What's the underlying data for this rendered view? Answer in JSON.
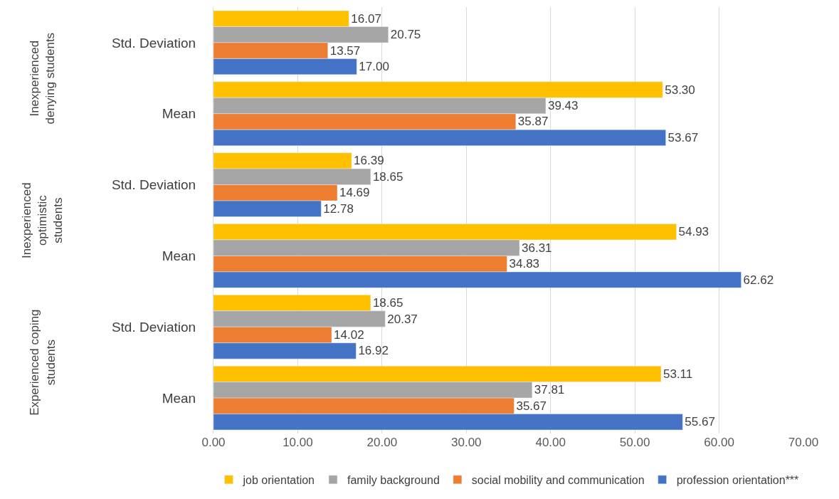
{
  "chart_data": {
    "type": "bar",
    "orientation": "horizontal",
    "categories": [
      "Std. Deviation",
      "Mean",
      "Std. Deviation",
      "Mean",
      "Std. Deviation",
      "Mean"
    ],
    "annotations": [
      "Inexperienced denying students",
      "Inexperienced optimistic students",
      "Experienced coping students"
    ],
    "series": [
      {
        "name": "job orientation",
        "color": "#ffc000",
        "values": [
          16.07,
          53.3,
          16.39,
          54.93,
          18.65,
          53.11
        ],
        "value_labels": [
          "16.07",
          "53.30",
          "16.39",
          "54.93",
          "18.65",
          "53.11"
        ]
      },
      {
        "name": "family background",
        "color": "#a5a5a5",
        "values": [
          20.75,
          39.43,
          18.65,
          36.31,
          20.37,
          37.81
        ],
        "value_labels": [
          "20.75",
          "39.43",
          "18.65",
          "36.31",
          "20.37",
          "37.81"
        ]
      },
      {
        "name": "social mobility and communication",
        "color": "#ed7d31",
        "values": [
          13.57,
          35.87,
          14.69,
          34.83,
          14.02,
          35.67
        ],
        "value_labels": [
          "13.57",
          "35.87",
          "14.69",
          "34.83",
          "14.02",
          "35.67"
        ]
      },
      {
        "name": "profession orientation***",
        "color": "#4472c4",
        "values": [
          17.0,
          53.67,
          12.78,
          62.62,
          16.92,
          55.67
        ],
        "value_labels": [
          "17.00",
          "53.67",
          "12.78",
          "62.62",
          "16.92",
          "55.67"
        ]
      }
    ],
    "xlim": [
      0,
      70
    ],
    "xticks": [
      {
        "value": 0,
        "label": "0.00"
      },
      {
        "value": 10,
        "label": "10.00"
      },
      {
        "value": 20,
        "label": "20.00"
      },
      {
        "value": 30,
        "label": "30.00"
      },
      {
        "value": 40,
        "label": "40.00"
      },
      {
        "value": 50,
        "label": "50.00"
      },
      {
        "value": 60,
        "label": "60.00"
      },
      {
        "value": 70,
        "label": "70.00"
      }
    ],
    "grid": "x",
    "legend": "bottom"
  }
}
